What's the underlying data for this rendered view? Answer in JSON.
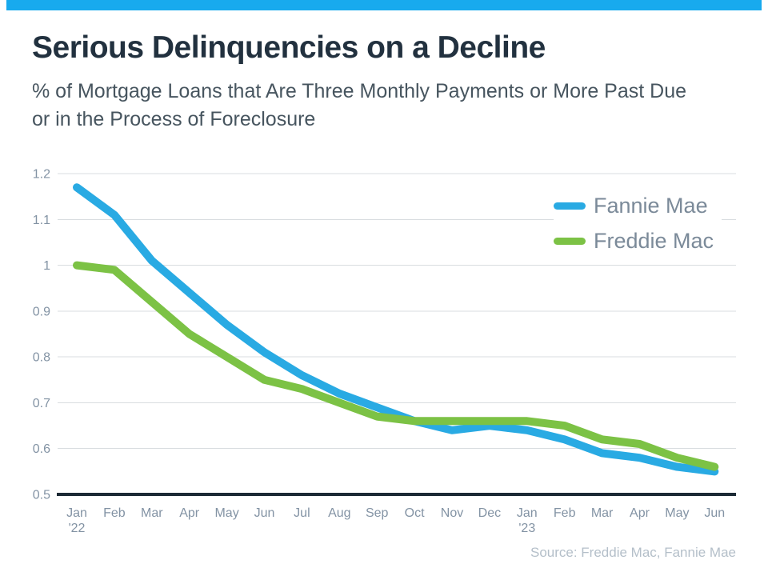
{
  "page": {
    "accent_bar_color": "#18aaee",
    "background": "#ffffff"
  },
  "chart_data": {
    "type": "line",
    "title": "Serious Delinquencies on a Decline",
    "subtitle_lines": [
      "% of Mortgage Loans that Are Three Monthly Payments or More Past Due",
      "or in the Process of Foreclosure"
    ],
    "categories": [
      "Jan",
      "Feb",
      "Mar",
      "Apr",
      "May",
      "Jun",
      "Jul",
      "Aug",
      "Sep",
      "Oct",
      "Nov",
      "Dec",
      "Jan",
      "Feb",
      "Mar",
      "Apr",
      "May",
      "Jun"
    ],
    "year_marks": {
      "0": "'22",
      "12": "'23"
    },
    "series": [
      {
        "name": "Fannie Mae",
        "color": "#29aae3",
        "values": [
          1.17,
          1.11,
          1.01,
          0.94,
          0.87,
          0.81,
          0.76,
          0.72,
          0.69,
          0.66,
          0.64,
          0.65,
          0.64,
          0.62,
          0.59,
          0.58,
          0.56,
          0.55
        ]
      },
      {
        "name": "Freddie Mac",
        "color": "#7cc245",
        "values": [
          1.0,
          0.99,
          0.92,
          0.85,
          0.8,
          0.75,
          0.73,
          0.7,
          0.67,
          0.66,
          0.66,
          0.66,
          0.66,
          0.65,
          0.62,
          0.61,
          0.58,
          0.56
        ]
      }
    ],
    "ylim": [
      0.5,
      1.2
    ],
    "yticks": [
      1.2,
      1.1,
      1,
      0.9,
      0.8,
      0.7,
      0.6,
      0.5
    ],
    "grid": true,
    "legend_position": "top-right",
    "source": "Source: Freddie Mac, Fannie Mae",
    "colors": {
      "gridline": "#d9dde0",
      "axis_line": "#1c2a35",
      "tick_label": "#8393a4"
    }
  }
}
